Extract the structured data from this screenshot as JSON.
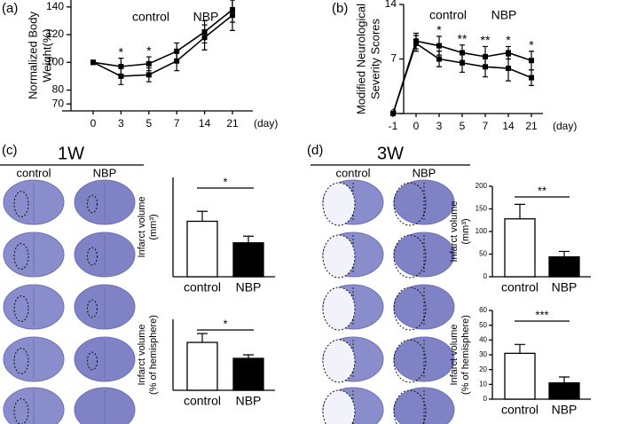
{
  "panels": [
    {
      "label": "(a)"
    },
    {
      "label": "(b)"
    },
    {
      "label": "(c)",
      "title": "1W",
      "columns": [
        "control",
        "NBP"
      ]
    },
    {
      "label": "(d)",
      "title": "3W",
      "columns": [
        "control",
        "NBP"
      ]
    }
  ],
  "chart_data": [
    {
      "type": "line",
      "ylabel": [
        "Normalized Body",
        "Weight(%)"
      ],
      "xlabel": "(day)",
      "categories": [
        "0",
        "3",
        "5",
        "7",
        "14",
        "21"
      ],
      "series": [
        {
          "name": "control",
          "color": "#000000",
          "values": [
            100,
            90,
            91,
            101,
            118,
            134
          ],
          "errors": [
            1,
            6,
            5,
            7,
            9,
            11
          ]
        },
        {
          "name": "NBP",
          "color": "#000000",
          "values": [
            100,
            97,
            99,
            108,
            122,
            138
          ],
          "errors": [
            1,
            6,
            5,
            6,
            8,
            9
          ]
        }
      ],
      "annotations": [
        null,
        "*",
        "*",
        null,
        null,
        null
      ],
      "ylim": [
        65,
        145
      ],
      "yticks": [
        70,
        80,
        100,
        120,
        140
      ]
    },
    {
      "type": "line",
      "ylabel": [
        "Modified Neurological",
        "Severity Scores"
      ],
      "xlabel": "(day)",
      "categories": [
        "-1",
        "0",
        "3",
        "5",
        "7",
        "14",
        "21"
      ],
      "series": [
        {
          "name": "control",
          "color": "#000000",
          "values": [
            0,
            9.3,
            8.7,
            7.8,
            7.3,
            7.8,
            6.8
          ],
          "errors": [
            0,
            1,
            1.2,
            1,
            1.3,
            0.8,
            1.2
          ]
        },
        {
          "name": "NBP",
          "color": "#000000",
          "values": [
            0,
            9,
            7,
            6.5,
            6,
            5.8,
            4.6
          ],
          "errors": [
            0,
            1,
            1,
            1.2,
            1.3,
            1.6,
            1
          ]
        }
      ],
      "annotations": [
        null,
        null,
        "*",
        "**",
        "**",
        "*",
        "*"
      ],
      "ylim": [
        0,
        14
      ],
      "yticks": [
        0,
        7,
        14
      ]
    },
    {
      "type": "bar",
      "ylabel": [
        "Infarct volume",
        "(mm³)"
      ],
      "categories": [
        "control",
        "NBP"
      ],
      "values": [
        67,
        41
      ],
      "errors": [
        12,
        8
      ],
      "colors": [
        "#ffffff",
        "#000000"
      ],
      "annotation": "*",
      "ylim": [
        0,
        120
      ]
    },
    {
      "type": "bar",
      "ylabel": [
        "Infarct volume",
        "(% of hemisphere)"
      ],
      "categories": [
        "control",
        "NBP"
      ],
      "values": [
        13.5,
        9
      ],
      "errors": [
        2.5,
        1
      ],
      "colors": [
        "#ffffff",
        "#000000"
      ],
      "annotation": "*",
      "ylim": [
        0,
        20
      ]
    },
    {
      "type": "bar",
      "ylabel": [
        "Infarct volume",
        "(mm³)"
      ],
      "categories": [
        "control",
        "NBP"
      ],
      "values": [
        128,
        44
      ],
      "errors": [
        32,
        12
      ],
      "colors": [
        "#ffffff",
        "#000000"
      ],
      "annotation": "**",
      "ylim": [
        0,
        200
      ],
      "yticks": [
        0,
        50,
        100,
        150,
        200
      ]
    },
    {
      "type": "bar",
      "ylabel": [
        "Infarct volume",
        "(% of hemisphere)"
      ],
      "categories": [
        "control",
        "NBP"
      ],
      "values": [
        31,
        11
      ],
      "errors": [
        6,
        4
      ],
      "colors": [
        "#ffffff",
        "#000000"
      ],
      "annotation": "***",
      "ylim": [
        0,
        60
      ],
      "yticks": [
        0,
        10,
        20,
        30,
        40,
        50,
        60
      ]
    }
  ]
}
